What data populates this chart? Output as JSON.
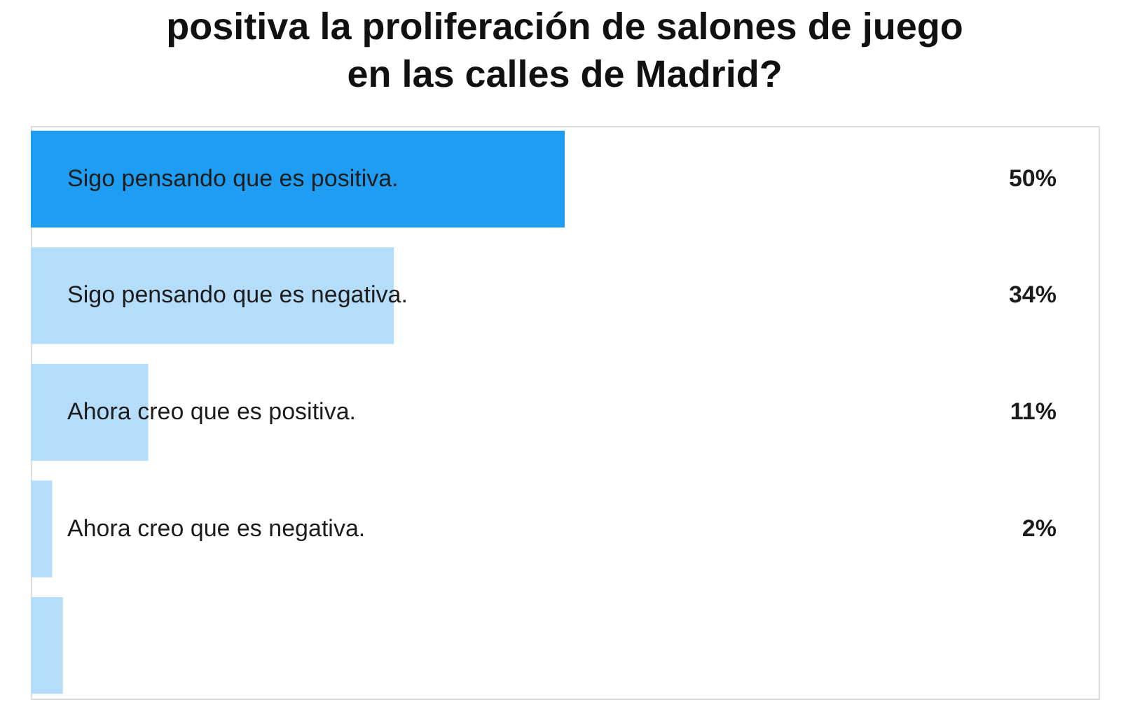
{
  "chart_data": {
    "type": "bar",
    "orientation": "horizontal",
    "title": "positiva la proliferación de salones de juego\nen las calles de Madrid?",
    "categories": [
      "Sigo pensando que es positiva.",
      "Sigo pensando que es negativa.",
      "Ahora creo que es positiva.",
      "Ahora creo que es negativa.",
      null
    ],
    "values": [
      50,
      34,
      11,
      2,
      3
    ],
    "colors": [
      "#1e9df3",
      "#b5ddfa",
      "#b5ddfa",
      "#b5ddfa",
      "#b5ddfa"
    ],
    "value_labels": [
      "50%",
      "34%",
      "11%",
      "2%",
      null
    ],
    "xlim": [
      0,
      100
    ]
  }
}
